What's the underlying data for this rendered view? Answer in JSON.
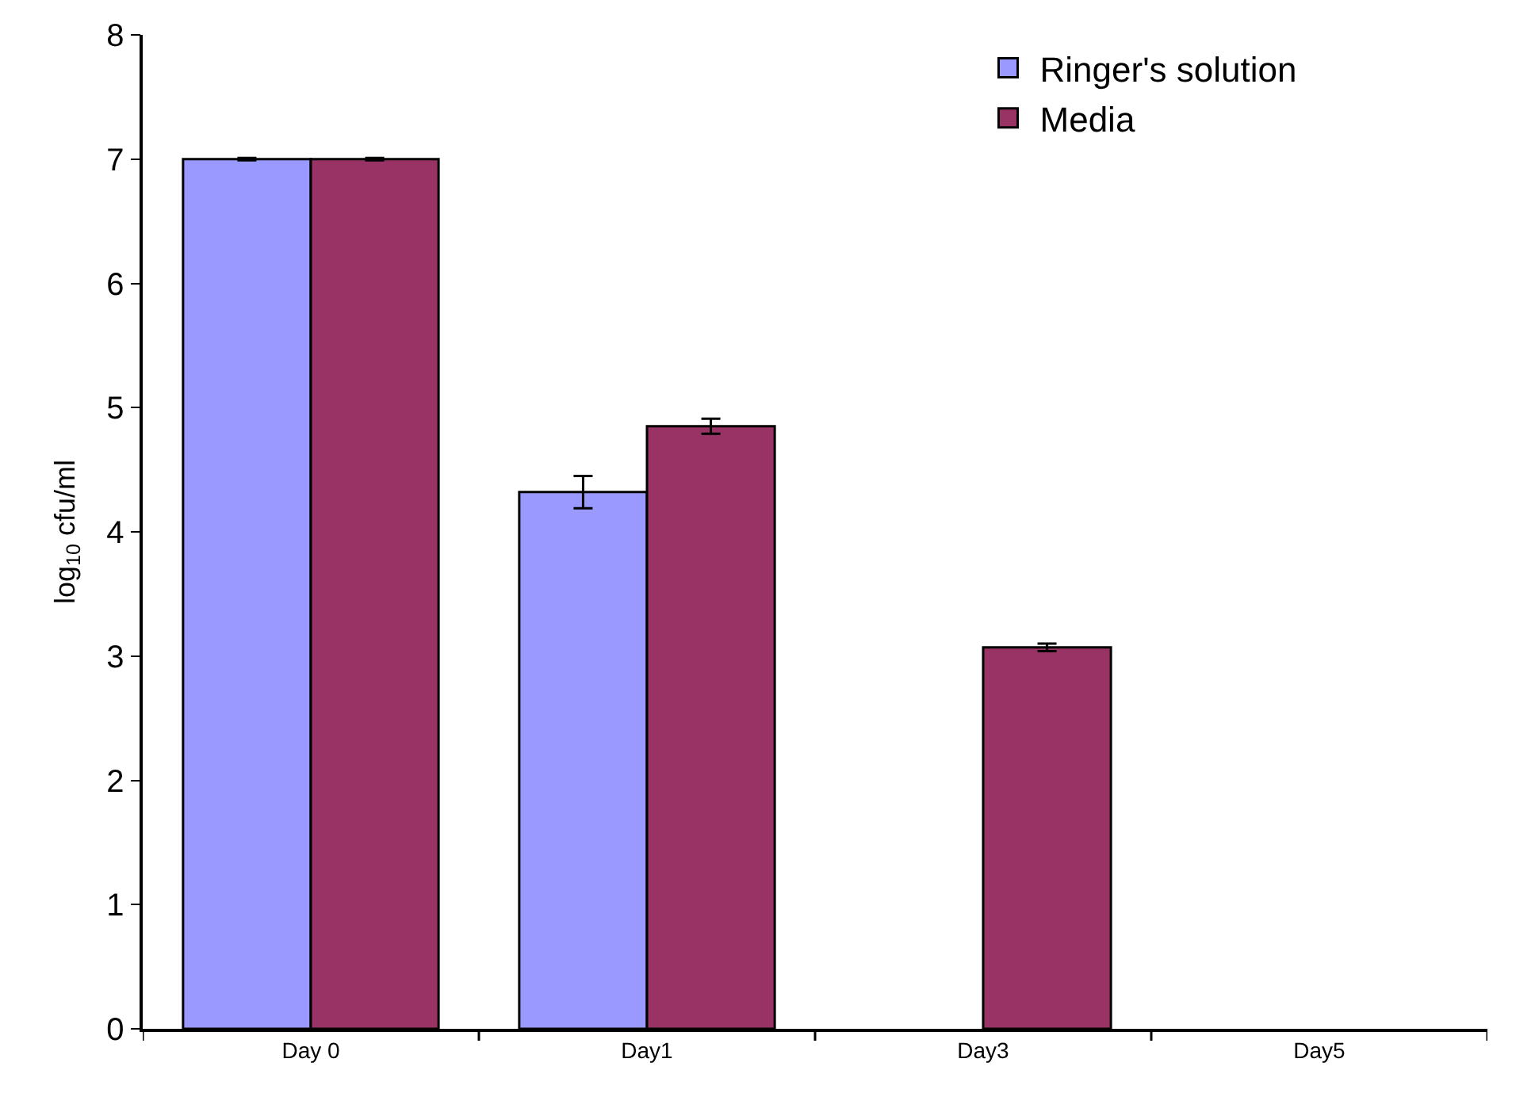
{
  "chart_data": {
    "type": "bar",
    "ylabel": "log$_{10}$ cfu/ml",
    "categories": [
      "Day 0",
      "Day1",
      "Day3",
      "Day5"
    ],
    "series": [
      {
        "name": "Ringer's solution",
        "color": "#9999ff",
        "values": [
          7.0,
          4.32,
          null,
          null
        ],
        "errors": [
          0.01,
          0.13,
          null,
          null
        ]
      },
      {
        "name": "Media",
        "color": "#993366",
        "values": [
          7.0,
          4.85,
          3.07,
          null
        ],
        "errors": [
          0.01,
          0.06,
          0.03,
          null
        ]
      }
    ],
    "ylim": [
      0,
      8
    ],
    "yticks": [
      0,
      1,
      2,
      3,
      4,
      5,
      6,
      7,
      8
    ],
    "grid": false,
    "legend": "top right"
  }
}
